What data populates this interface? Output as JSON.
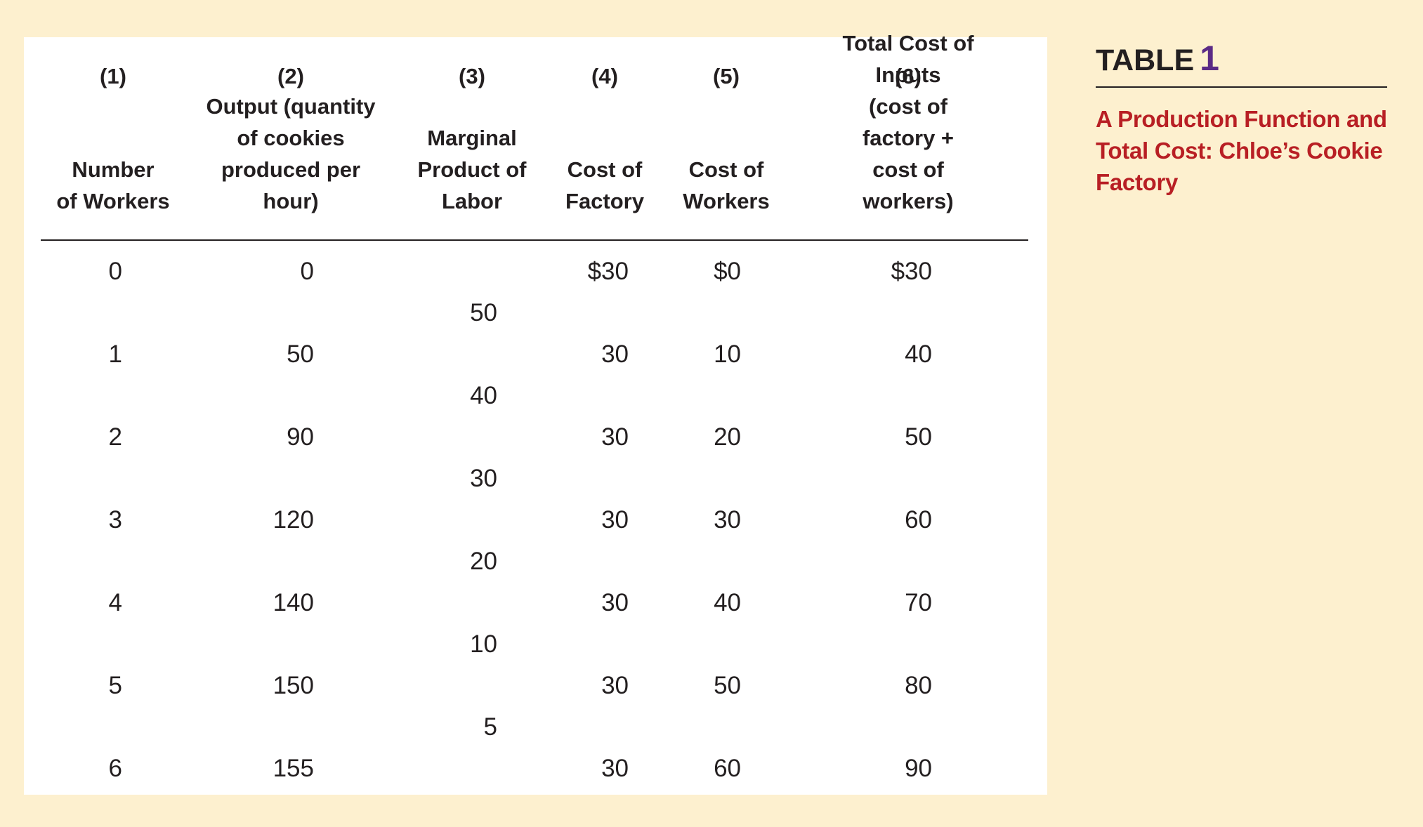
{
  "title": {
    "label": "TABLE",
    "number": "1"
  },
  "caption": "A Production Function and Total Cost: Chloe’s Cookie Factory",
  "columns": [
    {
      "number": "(1)",
      "header": "Number\nof Workers"
    },
    {
      "number": "(2)",
      "header": "Output (quantity\nof cookies\nproduced per\nhour)"
    },
    {
      "number": "(3)",
      "header": "Marginal\nProduct of\nLabor"
    },
    {
      "number": "(4)",
      "header": "Cost of\nFactory"
    },
    {
      "number": "(5)",
      "header": "Cost of\nWorkers"
    },
    {
      "number": "(6)",
      "header": "Total Cost of Inputs\n(cost of factory +\ncost of workers)"
    }
  ],
  "rows": [
    {
      "workers": "0",
      "output": "0",
      "factory": "$30",
      "worker_cost": "$0",
      "total": "$30"
    },
    {
      "workers": "1",
      "output": "50",
      "factory": "30",
      "worker_cost": "10",
      "total": "40"
    },
    {
      "workers": "2",
      "output": "90",
      "factory": "30",
      "worker_cost": "20",
      "total": "50"
    },
    {
      "workers": "3",
      "output": "120",
      "factory": "30",
      "worker_cost": "30",
      "total": "60"
    },
    {
      "workers": "4",
      "output": "140",
      "factory": "30",
      "worker_cost": "40",
      "total": "70"
    },
    {
      "workers": "5",
      "output": "150",
      "factory": "30",
      "worker_cost": "50",
      "total": "80"
    },
    {
      "workers": "6",
      "output": "155",
      "factory": "30",
      "worker_cost": "60",
      "total": "90"
    }
  ],
  "marginal_product": [
    "50",
    "40",
    "30",
    "20",
    "10",
    "5"
  ]
}
